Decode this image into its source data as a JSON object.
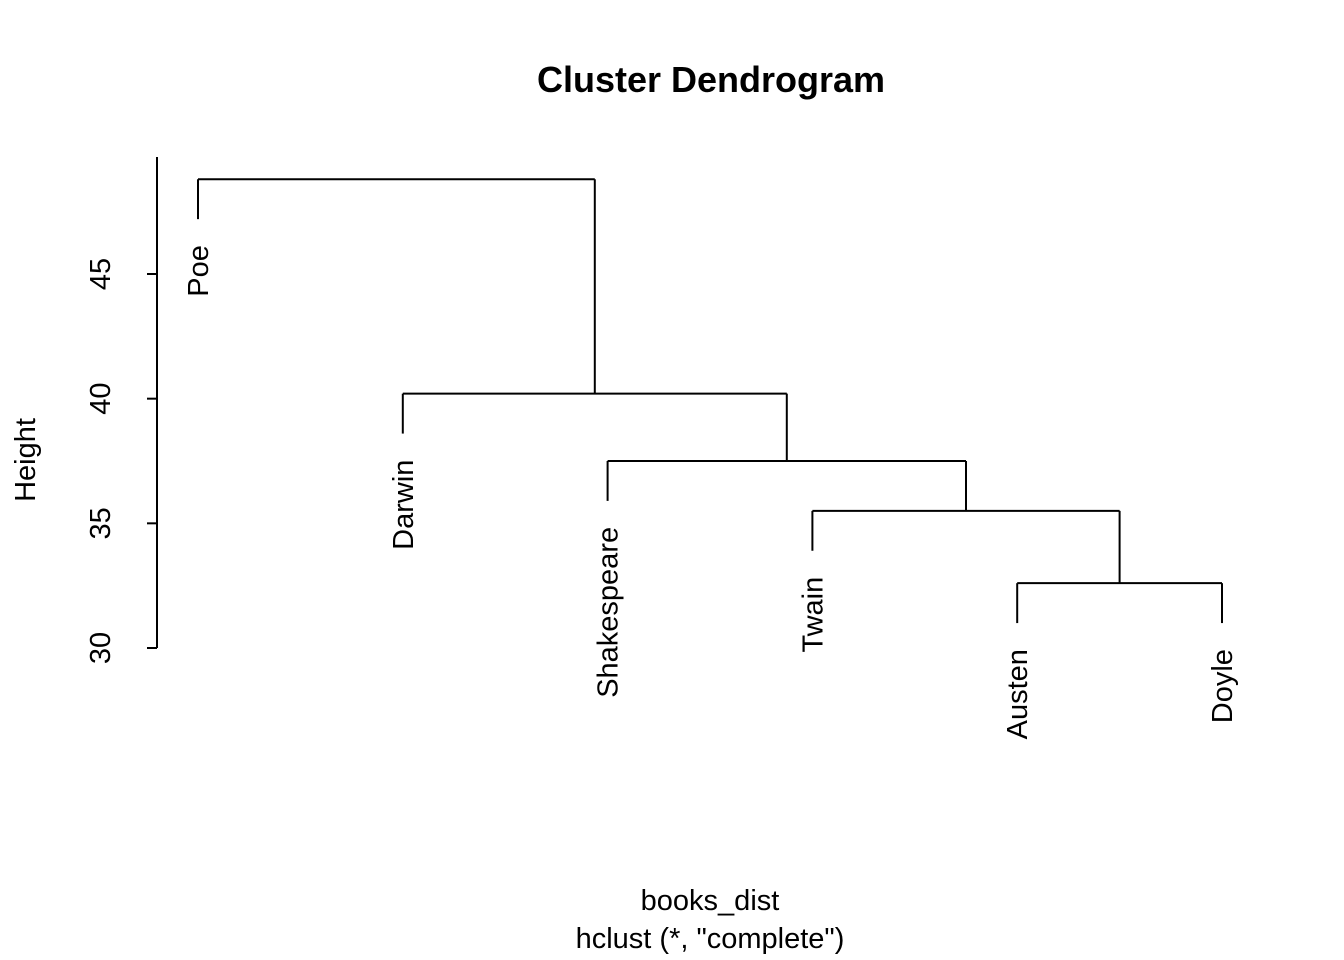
{
  "chart_data": {
    "type": "dendrogram",
    "title": "Cluster Dendrogram",
    "xlabel": "books_dist",
    "sublabel": "hclust (*, \"complete\")",
    "ylabel": "Height",
    "ylim": [
      29.9,
      49.2
    ],
    "yticks": [
      30,
      35,
      40,
      45
    ],
    "leaves": [
      "Poe",
      "Darwin",
      "Shakespeare",
      "Twain",
      "Austen",
      "Doyle"
    ],
    "merges": [
      {
        "left": "Austen",
        "right": "Doyle",
        "height": 32.6
      },
      {
        "left": "Twain",
        "right": "Austen+Doyle",
        "height": 35.5
      },
      {
        "left": "Shakespeare",
        "right": "Twain+Austen+Doyle",
        "height": 37.5
      },
      {
        "left": "Darwin",
        "right": "Shakespeare+Twain+Austen+Doyle",
        "height": 40.2
      },
      {
        "left": "Poe",
        "right": "Darwin+Shakespeare+Twain+Austen+Doyle",
        "height": 48.8
      }
    ]
  }
}
